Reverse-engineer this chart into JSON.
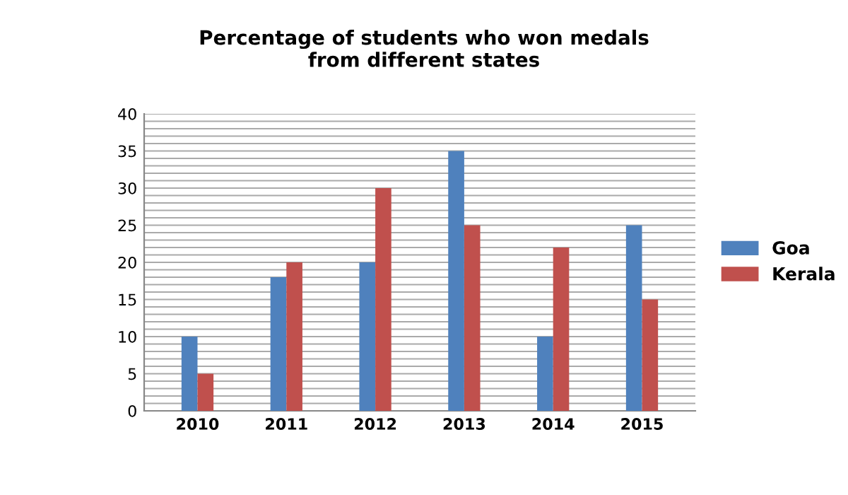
{
  "chart_data": {
    "type": "bar",
    "title": "Percentage of students who won medals\nfrom different states",
    "categories": [
      "2010",
      "2011",
      "2012",
      "2013",
      "2014",
      "2015"
    ],
    "series": [
      {
        "name": "Goa",
        "color": "#4f81bd",
        "values": [
          10,
          18,
          20,
          35,
          10,
          25
        ]
      },
      {
        "name": "Kerala",
        "color": "#c0504d",
        "values": [
          5,
          20,
          30,
          25,
          22,
          15
        ]
      }
    ],
    "ylim": [
      0,
      40
    ],
    "yticks": [
      0,
      {
        "value": 1,
        "label": null
      },
      {
        "value": 2,
        "label": null
      },
      {
        "value": 3,
        "label": null
      },
      {
        "value": 4,
        "label": null
      },
      5,
      {
        "value": 6,
        "label": null
      },
      {
        "value": 7,
        "label": null
      },
      {
        "value": 8,
        "label": null
      },
      {
        "value": 9,
        "label": null
      },
      10,
      {
        "value": 11,
        "label": null
      },
      {
        "value": 12,
        "label": null
      },
      {
        "value": 13,
        "label": null
      },
      {
        "value": 14,
        "label": null
      },
      15,
      {
        "value": 16,
        "label": null
      },
      {
        "value": 17,
        "label": null
      },
      {
        "value": 18,
        "label": null
      },
      {
        "value": 19,
        "label": null
      },
      20,
      {
        "value": 21,
        "label": null
      },
      {
        "value": 22,
        "label": null
      },
      {
        "value": 23,
        "label": null
      },
      {
        "value": 24,
        "label": null
      },
      25,
      {
        "value": 26,
        "label": null
      },
      {
        "value": 27,
        "label": null
      },
      {
        "value": 28,
        "label": null
      },
      {
        "value": 29,
        "label": null
      },
      30,
      {
        "value": 31,
        "label": null
      },
      {
        "value": 32,
        "label": null
      },
      {
        "value": 33,
        "label": null
      },
      {
        "value": 34,
        "label": null
      },
      35,
      {
        "value": 36,
        "label": null
      },
      {
        "value": 37,
        "label": null
      },
      {
        "value": 38,
        "label": null
      },
      {
        "value": 39,
        "label": null
      },
      40
    ],
    "grid": "y",
    "legend": "right"
  }
}
